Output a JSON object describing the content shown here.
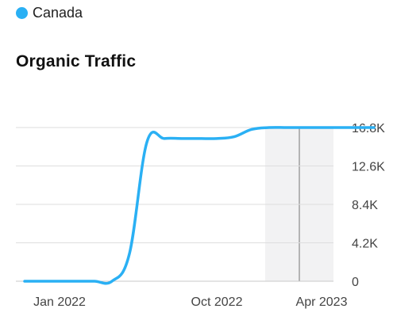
{
  "legend": {
    "label": "Canada",
    "color": "#2ab0f4"
  },
  "header": {
    "title": "Organic Traffic"
  },
  "chart_data": {
    "type": "line",
    "title": "Organic Traffic",
    "xlabel": "",
    "ylabel": "",
    "x_tick_labels": [
      "Jan 2022",
      "Oct 2022",
      "Apr 2023"
    ],
    "y_tick_labels": [
      "0",
      "4.2K",
      "8.4K",
      "12.6K",
      "16.8K"
    ],
    "y_ticks": [
      0,
      4200,
      8400,
      12600,
      16800
    ],
    "ylim": [
      0,
      16800
    ],
    "y_axis_side": "right",
    "grid": true,
    "series": [
      {
        "name": "Canada",
        "color": "#2ab0f4",
        "x": [
          "2021-11",
          "2021-12",
          "2022-01",
          "2022-02",
          "2022-03",
          "2022-04",
          "2022-05",
          "2022-06",
          "2022-07",
          "2022-08",
          "2022-09",
          "2022-10",
          "2022-11",
          "2022-12",
          "2023-01",
          "2023-02",
          "2023-03",
          "2023-04",
          "2023-05",
          "2023-06",
          "2023-07"
        ],
        "values": [
          0,
          0,
          0,
          0,
          0,
          0,
          3000,
          15200,
          15600,
          15600,
          15600,
          15600,
          15800,
          16600,
          16800,
          16800,
          16800,
          16800,
          16800,
          16800,
          16800
        ]
      }
    ]
  }
}
